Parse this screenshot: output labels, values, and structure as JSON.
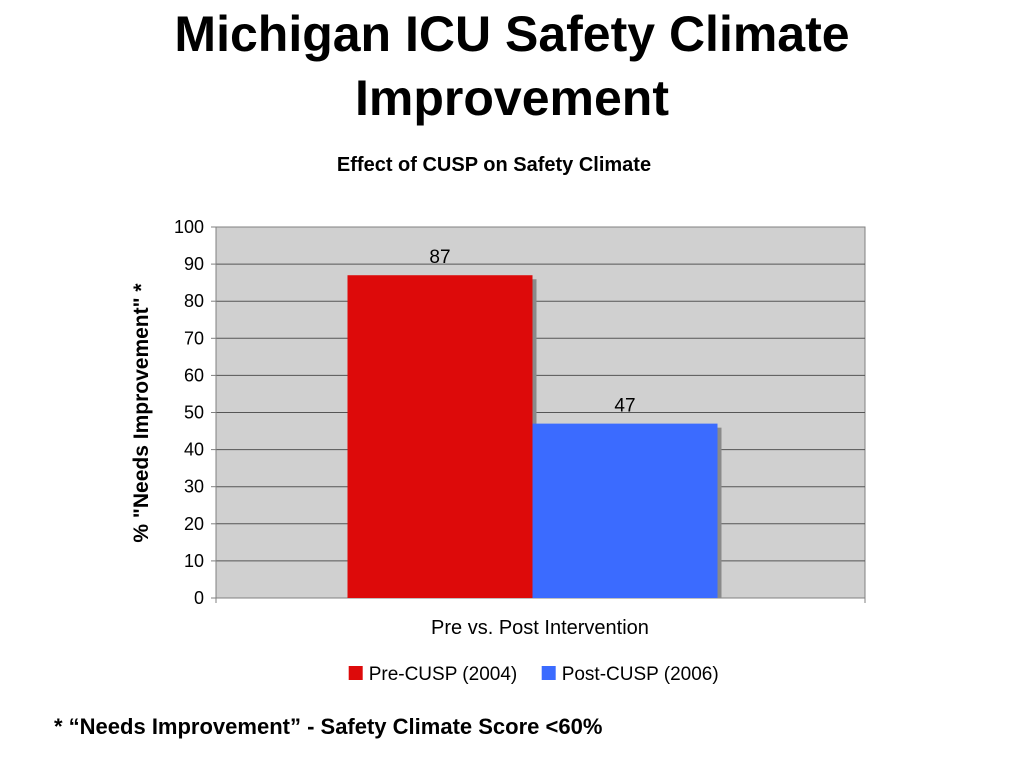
{
  "slide": {
    "title_line1": "Michigan ICU Safety Climate",
    "title_line2": "Improvement",
    "footnote": "* “Needs Improvement” - Safety Climate Score <60%"
  },
  "chart_data": {
    "type": "bar",
    "title": "Effect of CUSP on Safety Climate",
    "xlabel": "Pre vs. Post Intervention",
    "ylabel": "% \"Needs Improvement\" *",
    "ylim": [
      0,
      100
    ],
    "ytick_step": 10,
    "grid": true,
    "legend_position": "bottom",
    "plot_background": "#d0d0d0",
    "series": [
      {
        "name": "Pre-CUSP (2004)",
        "values": [
          87
        ],
        "color": "#dd0a0a"
      },
      {
        "name": "Post-CUSP (2006)",
        "values": [
          47
        ],
        "color": "#3b6bff"
      }
    ]
  }
}
